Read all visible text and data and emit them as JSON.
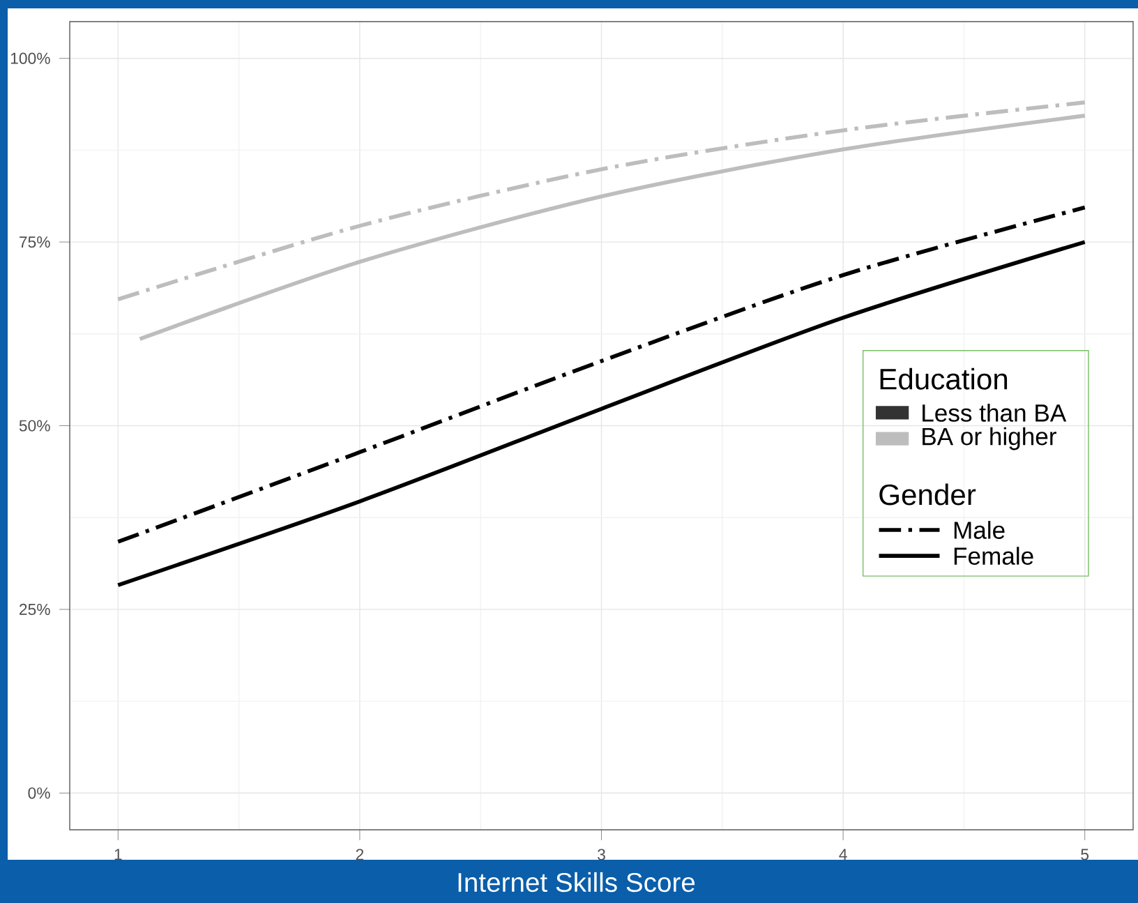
{
  "chart_data": {
    "type": "line",
    "xlabel": "Internet Skills Score",
    "x": [
      1,
      2,
      3,
      4,
      5
    ],
    "series": [
      {
        "color": "#000000",
        "line_style": "dashed",
        "values": [
          34.2,
          46.4,
          58.8,
          70.5,
          79.7
        ]
      },
      {
        "color": "#000000",
        "line_style": "solid",
        "values": [
          28.3,
          39.7,
          52.3,
          64.7,
          75.0
        ]
      },
      {
        "color": "#bdbdbd",
        "line_style": "dashed",
        "values": [
          67.2,
          77.2,
          84.9,
          90.2,
          94.0
        ]
      },
      {
        "color": "#bdbdbd",
        "line_style": "solid",
        "x": [
          1.09,
          2,
          3,
          4,
          5
        ],
        "values": [
          61.8,
          72.3,
          81.2,
          87.6,
          92.2
        ]
      }
    ],
    "xlim": [
      0.8,
      5.2
    ],
    "ylim": [
      -5,
      105
    ],
    "xticks": [
      1,
      2,
      3,
      4,
      5
    ],
    "yticks": [
      {
        "value": 0,
        "label": "0%"
      },
      {
        "value": 25,
        "label": "25%"
      },
      {
        "value": 50,
        "label": "50%"
      },
      {
        "value": 75,
        "label": "75%"
      },
      {
        "value": 100,
        "label": "100%"
      }
    ],
    "grid": true,
    "annotations": [
      "Education",
      "Less than BA",
      "BA or higher",
      "Gender",
      "Male",
      "Female"
    ]
  }
}
